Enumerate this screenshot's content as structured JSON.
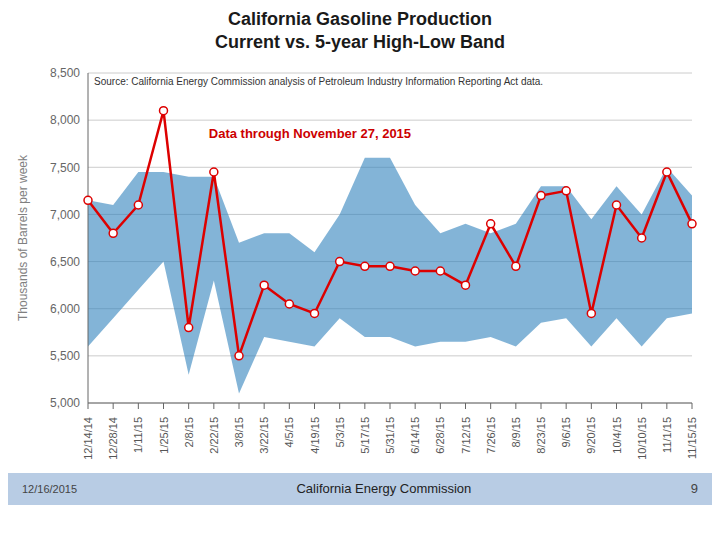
{
  "chart_data": {
    "type": "line",
    "title": "California Gasoline Production\nCurrent vs. 5-year High-Low Band",
    "ylabel": "Thousands of Barrels per week",
    "annotations": [
      "Data through November 27, 2015",
      "Source: California Energy Commission analysis of Petroleum Industry Information Reporting Act data."
    ],
    "footer": [
      "12/16/2015",
      "California Energy Commission",
      "9"
    ],
    "categories": [
      "12/14/14",
      "12/28/14",
      "1/11/15",
      "1/25/15",
      "2/8/15",
      "2/22/15",
      "3/8/15",
      "3/22/15",
      "4/5/15",
      "4/19/15",
      "5/3/15",
      "5/17/15",
      "5/31/15",
      "6/14/15",
      "6/28/15",
      "7/12/15",
      "7/26/15",
      "8/9/15",
      "8/23/15",
      "9/6/15",
      "9/20/15",
      "10/4/15",
      "10/10/15",
      "11/1/15",
      "11/15/15"
    ],
    "values": [
      7150,
      6800,
      7100,
      8100,
      5800,
      7450,
      5500,
      6250,
      6050,
      5950,
      6500,
      6450,
      6450,
      6400,
      6400,
      6250,
      6900,
      6450,
      7200,
      7250,
      5950,
      7100,
      6750,
      7450,
      6900
    ],
    "band_high": [
      7150,
      7100,
      7450,
      7450,
      7400,
      7400,
      6700,
      6800,
      6800,
      6600,
      7000,
      7600,
      7600,
      7100,
      6800,
      6900,
      6800,
      6900,
      7300,
      7300,
      6950,
      7300,
      7000,
      7500,
      7200
    ],
    "band_low": [
      5600,
      5900,
      6200,
      6500,
      5300,
      6300,
      5100,
      5700,
      5650,
      5600,
      5900,
      5700,
      5700,
      5600,
      5650,
      5650,
      5700,
      5600,
      5850,
      5900,
      5600,
      5900,
      5600,
      5900,
      5950
    ],
    "color": "#dd0000",
    "marker": "o",
    "grid": true,
    "ylim": [
      5000,
      8500
    ],
    "yticks": [
      {
        "value": 5000,
        "label": "5,000"
      },
      {
        "value": 5500,
        "label": "5,500"
      },
      {
        "value": 6000,
        "label": "6,000"
      },
      {
        "value": 6500,
        "label": "6,500"
      },
      {
        "value": 7000,
        "label": "7,000"
      },
      {
        "value": 7500,
        "label": "7,500"
      },
      {
        "value": 8000,
        "label": "8,000"
      },
      {
        "value": 8500,
        "label": "8,500"
      }
    ]
  }
}
